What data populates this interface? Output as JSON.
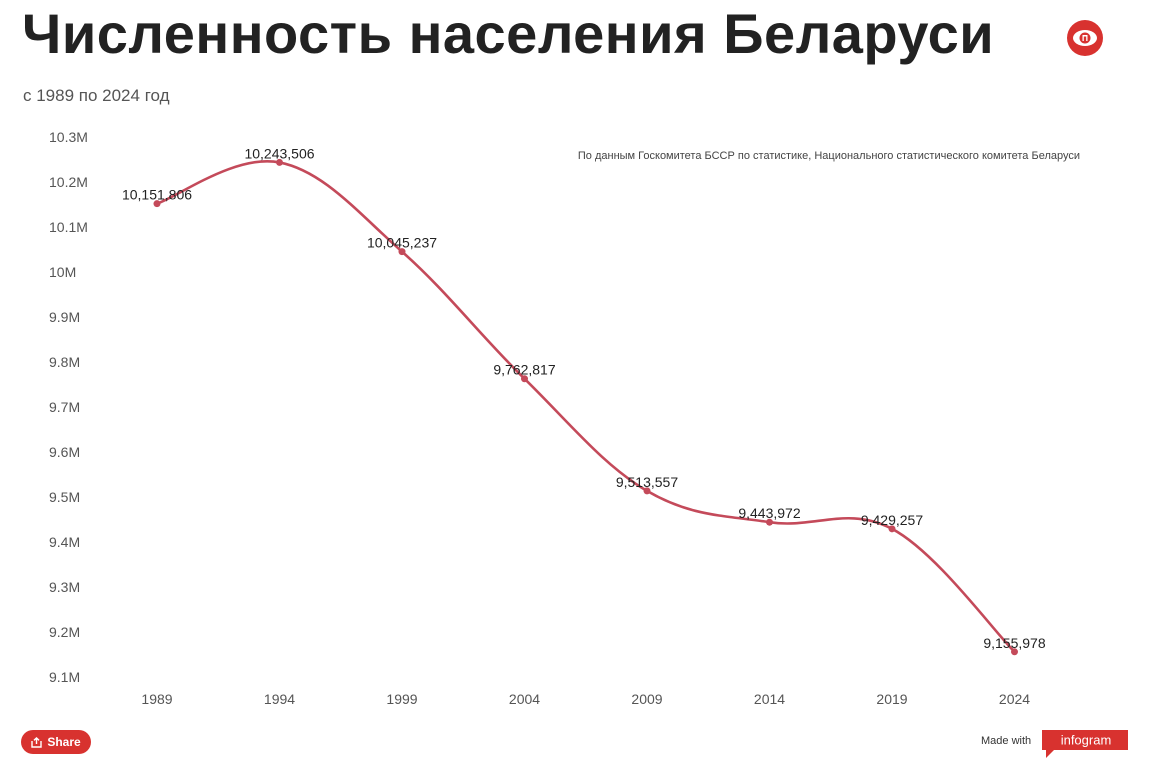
{
  "header": {
    "title": "Численность населения Беларуси",
    "subtitle": "с 1989 по 2024 год",
    "logo_icon": "eye-logo-icon",
    "brand_color": "#d8322f"
  },
  "footer": {
    "share_label": "Share",
    "share_icon": "share-icon",
    "made_with_label": "Made with",
    "infogram_label": "infogram"
  },
  "chart_data": {
    "type": "line",
    "title": "",
    "xlabel": "",
    "ylabel": "",
    "annotation": "По данным Госкомитета БССР по статистике, Национального статистического комитета Беларуси",
    "categories": [
      "1989",
      "1994",
      "1999",
      "2004",
      "2009",
      "2014",
      "2019",
      "2024"
    ],
    "series": [
      {
        "values": [
          10151806,
          10243506,
          10045237,
          9762817,
          9513557,
          9443972,
          9429257,
          9155978
        ],
        "labels": [
          "10,151,806",
          "10,243,506",
          "10,045,237",
          "9,762,817",
          "9,513,557",
          "9,443,972",
          "9,429,257",
          "9,155,978"
        ],
        "color": "#c44a5a"
      }
    ],
    "yticks": [
      "10.3M",
      "10.2M",
      "10.1M",
      "10M",
      "9.9M",
      "9.8M",
      "9.7M",
      "9.6M",
      "9.5M",
      "9.4M",
      "9.3M",
      "9.2M",
      "9.1M"
    ],
    "ylim": [
      9100000,
      10300000
    ],
    "grid": false,
    "legend": "none"
  }
}
